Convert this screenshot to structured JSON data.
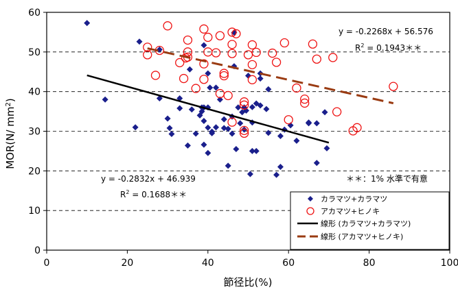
{
  "chart_data": {
    "type": "scatter",
    "xlabel": "節径比(%)",
    "ylabel": "MOR(N/ mm2)",
    "xlim": [
      0,
      100
    ],
    "ylim": [
      0,
      60
    ],
    "xticks": [
      0,
      20,
      40,
      60,
      80,
      100
    ],
    "yticks": [
      0,
      10,
      20,
      30,
      40,
      50,
      60
    ],
    "grid": "horizontal dashed",
    "legend_position": "bottom-right",
    "annotations": {
      "note": "＊＊：1% 水準で有意",
      "eq_red": "y = -0.2268x + 56.576",
      "r2_red_prefix": "R",
      "r2_red_sup": "2",
      "r2_red_value": " = 0.1943＊＊",
      "eq_blue": "y = -0.2832x + 46.939",
      "r2_blue_prefix": "R",
      "r2_blue_sup": "2",
      "r2_blue_value": " = 0.1688＊＊"
    },
    "series": [
      {
        "name": "カラマツ+カラマツ",
        "marker": "diamond",
        "color": "#1a1f8c",
        "points": [
          [
            10,
            57.3
          ],
          [
            14.5,
            38
          ],
          [
            22,
            31
          ],
          [
            23,
            52.6
          ],
          [
            28,
            50.6
          ],
          [
            28,
            38.3
          ],
          [
            30,
            33.2
          ],
          [
            30.5,
            30.8
          ],
          [
            31,
            29.3
          ],
          [
            33,
            35.8
          ],
          [
            33,
            38.3
          ],
          [
            35,
            26.4
          ],
          [
            35.5,
            45.6
          ],
          [
            36,
            35.5
          ],
          [
            37,
            29.4
          ],
          [
            38,
            34
          ],
          [
            38.5,
            35
          ],
          [
            38.5,
            36
          ],
          [
            39,
            26.6
          ],
          [
            39,
            32.6
          ],
          [
            39,
            36
          ],
          [
            39,
            51.7
          ],
          [
            40,
            30.9
          ],
          [
            40,
            24.5
          ],
          [
            40,
            36
          ],
          [
            40,
            44.6
          ],
          [
            40.5,
            41
          ],
          [
            41,
            29.5
          ],
          [
            41,
            29.9
          ],
          [
            42,
            31
          ],
          [
            42,
            41
          ],
          [
            43,
            38
          ],
          [
            44,
            33
          ],
          [
            44,
            30.8
          ],
          [
            45,
            21.3
          ],
          [
            45,
            30.6
          ],
          [
            46,
            29.4
          ],
          [
            46,
            33.7
          ],
          [
            46.5,
            54.9
          ],
          [
            46.5,
            46.4
          ],
          [
            47,
            25.5
          ],
          [
            47.5,
            36
          ],
          [
            48,
            32
          ],
          [
            48.5,
            34.8
          ],
          [
            49,
            36
          ],
          [
            49,
            30.4
          ],
          [
            49.5,
            35.2
          ],
          [
            50,
            44
          ],
          [
            50.5,
            19.2
          ],
          [
            51,
            32.2
          ],
          [
            51,
            25
          ],
          [
            51,
            36.1
          ],
          [
            52,
            25
          ],
          [
            52,
            37
          ],
          [
            53,
            43.3
          ],
          [
            53,
            44.6
          ],
          [
            53,
            36.5
          ],
          [
            54.5,
            35.6
          ],
          [
            55,
            40.6
          ],
          [
            55,
            29.6
          ],
          [
            57,
            19
          ],
          [
            58,
            28.8
          ],
          [
            58,
            21
          ],
          [
            59,
            30.4
          ],
          [
            60.5,
            31.5
          ],
          [
            62,
            27.6
          ],
          [
            65,
            32.2
          ],
          [
            65,
            32
          ],
          [
            67,
            22
          ],
          [
            67,
            32
          ],
          [
            69,
            34.8
          ],
          [
            69.5,
            25.7
          ]
        ]
      },
      {
        "name": "アカマツ+ヒノキ",
        "marker": "circle",
        "color": "#ee1111",
        "points": [
          [
            25,
            51.2
          ],
          [
            25,
            49.3
          ],
          [
            27,
            44.1
          ],
          [
            28,
            50.4
          ],
          [
            30,
            56.6
          ],
          [
            33,
            47.3
          ],
          [
            34,
            43.3
          ],
          [
            34.5,
            48.5
          ],
          [
            35,
            53
          ],
          [
            35,
            50
          ],
          [
            35,
            48.7
          ],
          [
            37,
            40.8
          ],
          [
            39,
            55.8
          ],
          [
            39,
            43.1
          ],
          [
            39,
            47
          ],
          [
            40,
            53.7
          ],
          [
            40,
            50
          ],
          [
            42,
            49.8
          ],
          [
            43,
            54.1
          ],
          [
            43,
            39.5
          ],
          [
            44,
            44.6
          ],
          [
            44,
            44
          ],
          [
            45,
            39
          ],
          [
            46,
            55
          ],
          [
            46,
            51.9
          ],
          [
            46,
            49.6
          ],
          [
            46,
            32.3
          ],
          [
            47,
            54.6
          ],
          [
            49,
            37.4
          ],
          [
            49,
            36.6
          ],
          [
            49,
            30.2
          ],
          [
            49,
            29.5
          ],
          [
            50,
            49.3
          ],
          [
            51,
            51.8
          ],
          [
            51,
            43
          ],
          [
            51,
            46.8
          ],
          [
            52,
            49.9
          ],
          [
            56,
            49.7
          ],
          [
            57,
            47.4
          ],
          [
            59,
            52.3
          ],
          [
            60,
            32.9
          ],
          [
            62,
            40.9
          ],
          [
            64,
            38.1
          ],
          [
            64,
            37.1
          ],
          [
            66,
            52
          ],
          [
            67,
            48.2
          ],
          [
            71,
            48.6
          ],
          [
            72,
            34.9
          ],
          [
            76,
            30.1
          ],
          [
            77,
            30.9
          ],
          [
            86,
            41.3
          ]
        ]
      }
    ],
    "fits": [
      {
        "name": "線形 (カラマツ+カラマツ)",
        "slope": -0.2832,
        "intercept": 46.939,
        "x_range": [
          10,
          70
        ],
        "color": "#000000",
        "dash": "none"
      },
      {
        "name": "線形 (アカマツ+ヒノキ)",
        "slope": -0.2268,
        "intercept": 56.576,
        "x_range": [
          25,
          86
        ],
        "color": "#9a3b12",
        "dash": "16,8"
      }
    ]
  }
}
